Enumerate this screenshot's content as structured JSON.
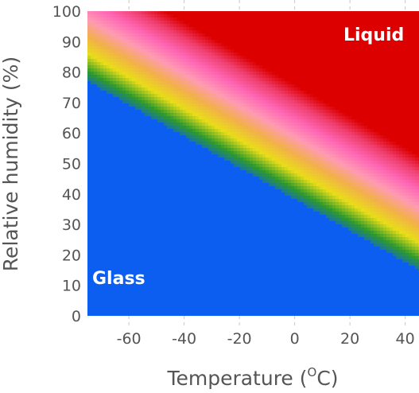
{
  "chart_data": {
    "type": "heatmap",
    "title": "",
    "xlabel": "Temperature",
    "xlabel_unit_sup": "O",
    "xlabel_unit_rest": "C)",
    "xlabel_open": "(",
    "ylabel": "Relative humidity (%)",
    "xlim": [
      -75,
      45
    ],
    "ylim": [
      0,
      100
    ],
    "x_ticks": [
      -60,
      -40,
      -20,
      0,
      20,
      40
    ],
    "x_tick_labels": [
      "-60",
      "-40",
      "-20",
      "0",
      "20",
      "40"
    ],
    "y_ticks": [
      0,
      10,
      20,
      30,
      40,
      50,
      60,
      70,
      80,
      90,
      100
    ],
    "y_tick_labels": [
      "0",
      "10",
      "20",
      "30",
      "40",
      "50",
      "60",
      "70",
      "80",
      "90",
      "100"
    ],
    "grid": "vertical dashed at x ticks",
    "phase_boundary": {
      "description": "glass-to-liquid transition (lower edge of gradient)",
      "points": [
        [
          -75,
          77
        ],
        [
          45,
          15
        ]
      ]
    },
    "transition_band_width_rh": 40,
    "regions": [
      {
        "label": "Glass",
        "color": "#0b5ef0",
        "position": "bottom-left"
      },
      {
        "label": "Liquid",
        "color": "#dd0000",
        "position": "top-right"
      }
    ],
    "colorscale": [
      "#0b5ef0",
      "#2e9a2a",
      "#e9dd18",
      "#f2b04a",
      "#ff9ab4",
      "#ff67b5",
      "#f04070",
      "#dd0000"
    ]
  }
}
